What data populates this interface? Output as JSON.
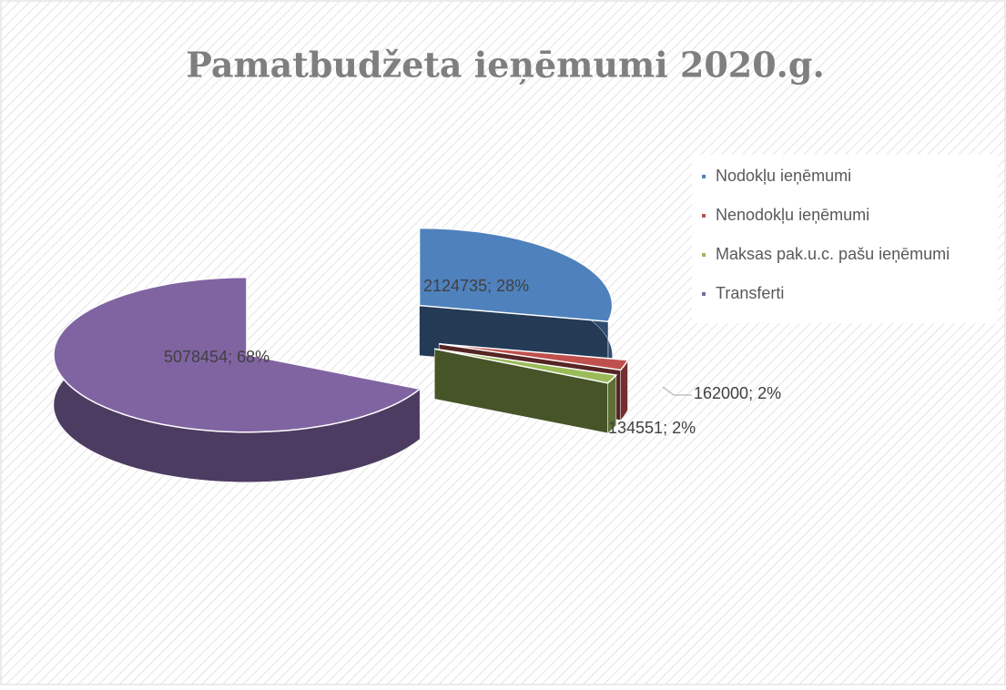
{
  "chart_data": {
    "type": "pie",
    "title": "Pamatbudžeta ieņēmumi 2020.g.",
    "categories": [
      "Nodokļu ieņēmumi",
      "Nenodokļu ieņēmumi",
      "Maksas pak.u.c. pašu ieņēmumi",
      "Transferti"
    ],
    "values": [
      2124735,
      162000,
      134551,
      5078454
    ],
    "value_labels": [
      "2124735; 28%",
      "162000; 2%",
      "134551; 2%",
      "5078454; 68%"
    ],
    "colors": [
      "#4f81bd",
      "#c0504d",
      "#9bbb59",
      "#8064a2"
    ],
    "legend": "right"
  }
}
